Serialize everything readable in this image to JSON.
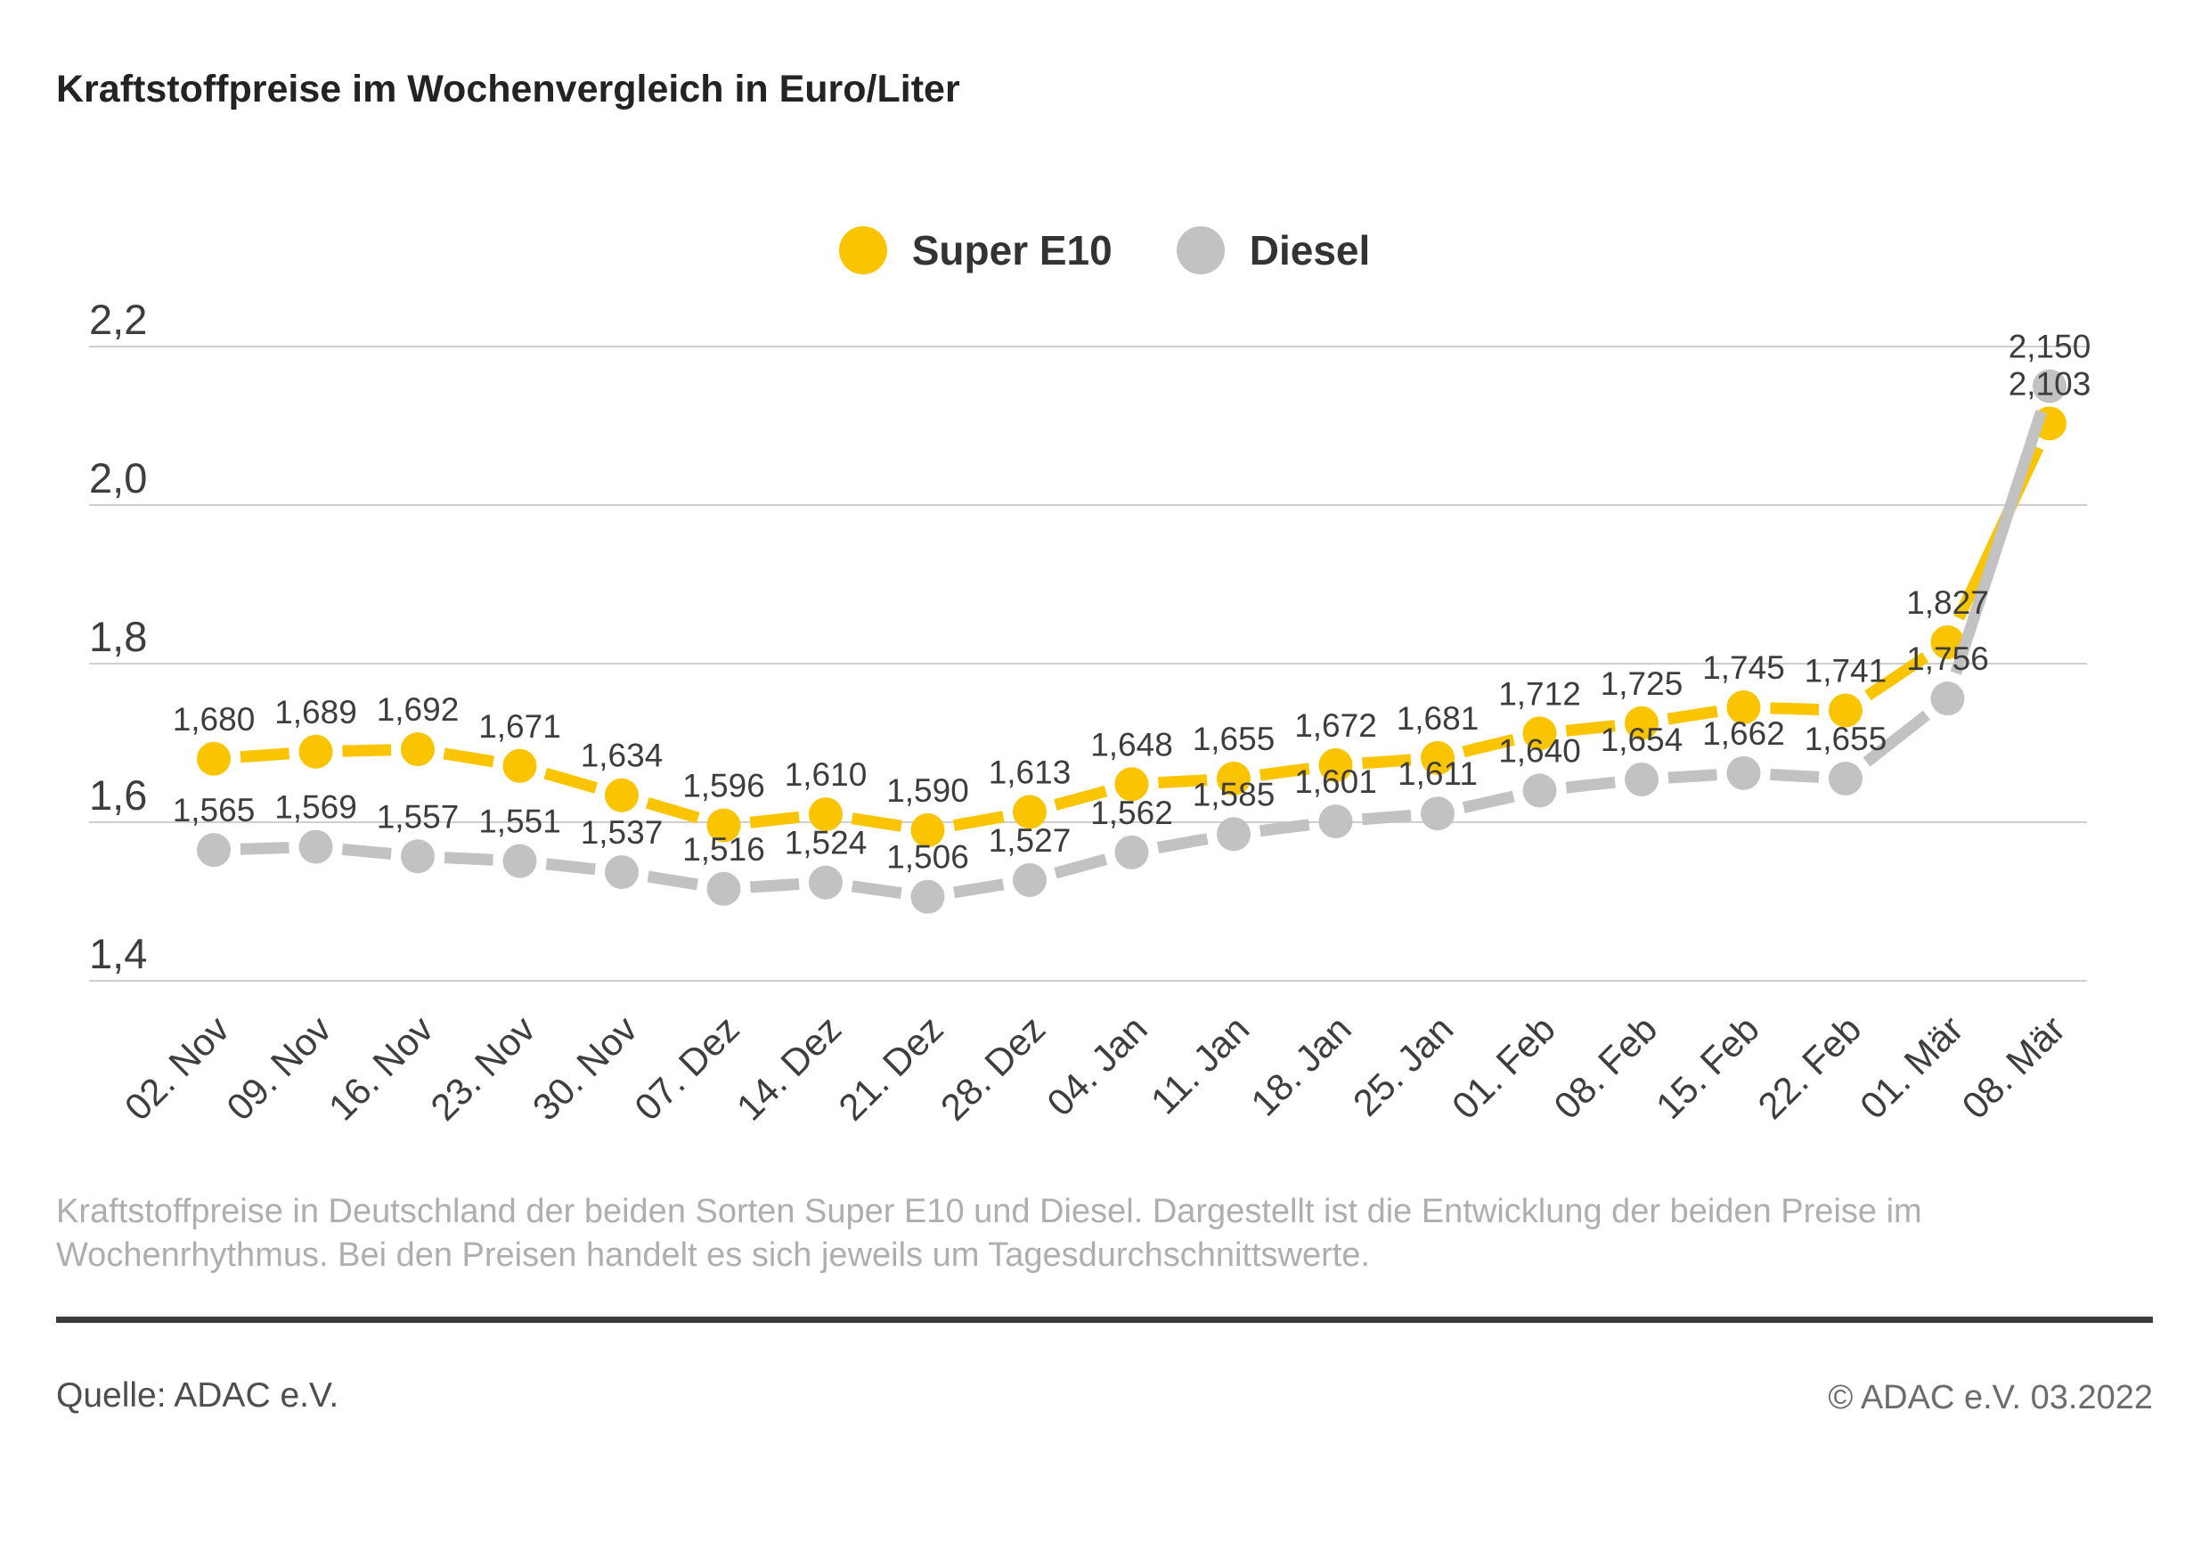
{
  "title": "Kraftstoffpreise im Wochenvergleich in Euro/Liter",
  "chart_data": {
    "type": "line",
    "title": "Kraftstoffpreise im Wochenvergleich in Euro/Liter",
    "ylabel": "Euro/Liter",
    "xlabel": "",
    "categories": [
      "02. Nov",
      "09. Nov",
      "16. Nov",
      "23. Nov",
      "30. Nov",
      "07. Dez",
      "14. Dez",
      "21. Dez",
      "28. Dez",
      "04. Jan",
      "11. Jan",
      "18. Jan",
      "25. Jan",
      "01. Feb",
      "08. Feb",
      "15. Feb",
      "22. Feb",
      "01. Mär",
      "08. Mär"
    ],
    "series": [
      {
        "name": "Super E10",
        "color": "#FAC500",
        "values": [
          1.68,
          1.689,
          1.692,
          1.671,
          1.634,
          1.596,
          1.61,
          1.59,
          1.613,
          1.648,
          1.655,
          1.672,
          1.681,
          1.712,
          1.725,
          1.745,
          1.741,
          1.827,
          2.103
        ]
      },
      {
        "name": "Diesel",
        "color": "#C2C2C2",
        "values": [
          1.565,
          1.569,
          1.557,
          1.551,
          1.537,
          1.516,
          1.524,
          1.506,
          1.527,
          1.562,
          1.585,
          1.601,
          1.611,
          1.64,
          1.654,
          1.662,
          1.655,
          1.756,
          2.15
        ]
      }
    ],
    "ylim": [
      1.4,
      2.2
    ],
    "yticks": [
      1.4,
      1.6,
      1.8,
      2.0,
      2.2
    ],
    "grid": true,
    "legend_position": "top",
    "value_labels": true,
    "decimal_separator": ",",
    "grid_color": "#CFCFCF",
    "label_color": "#3D3D3D"
  },
  "footer": {
    "description": "Kraftstoffpreise in Deutschland der beiden Sorten Super E10 und Diesel. Dargestellt ist die Entwicklung der beiden Preise im Wochenrhythmus. Bei den Preisen handelt es sich jeweils um Tagesdurchschnittswerte.",
    "source": "Quelle: ADAC e.V.",
    "copyright": "© ADAC e.V. 03.2022"
  }
}
